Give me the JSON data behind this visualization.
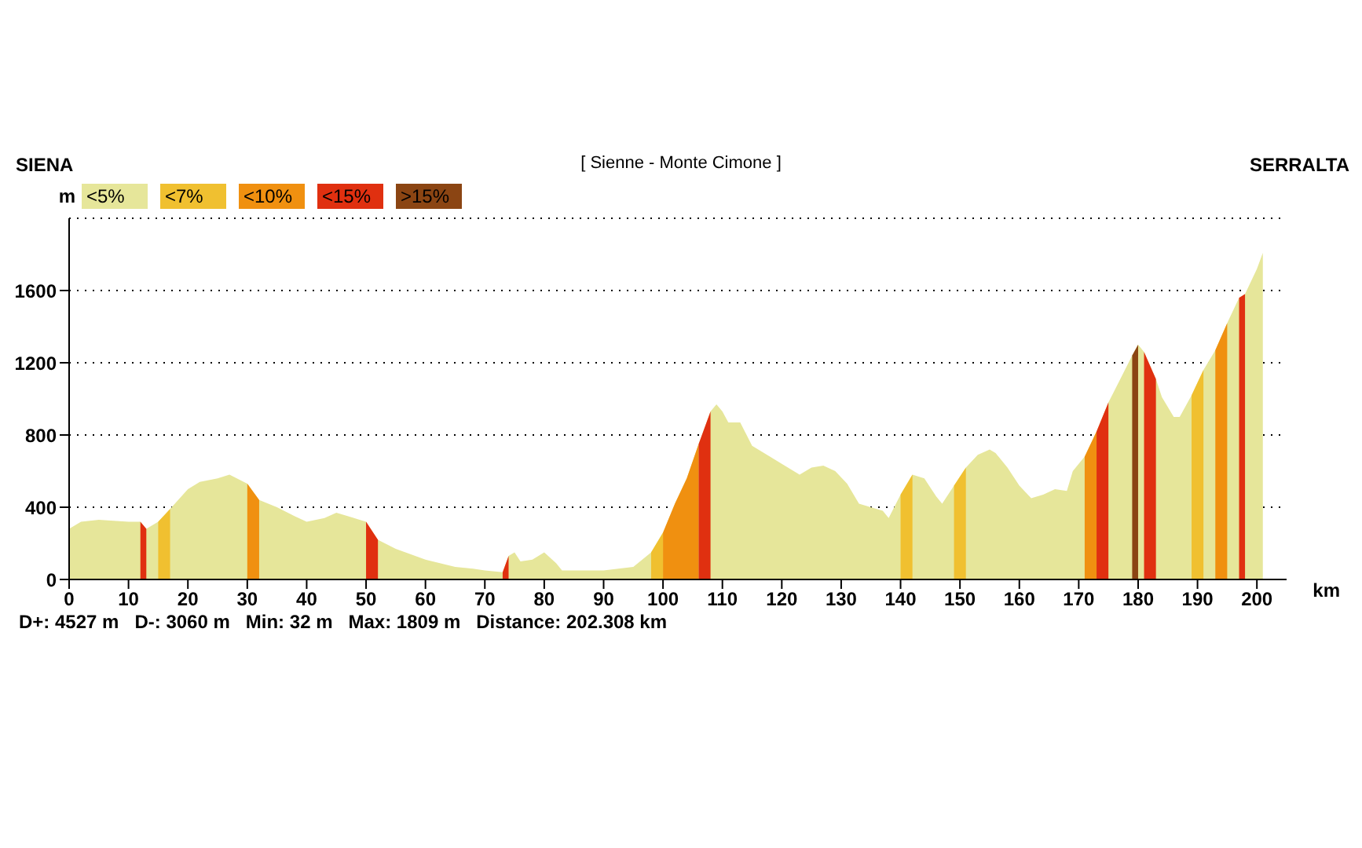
{
  "chart_data": {
    "type": "area",
    "title": "[ Sienne - Monte Cimone ]",
    "xlabel": "km",
    "ylabel": "m",
    "annotations": [
      "SIENA",
      "SERRALTA",
      "D+: 4527 m   D-: 3060 m   Min: 32 m   Max: 1809 m   Distance: 202.308 km"
    ],
    "x": [
      0,
      2,
      5,
      10,
      12,
      13,
      15,
      17,
      20,
      22,
      25,
      27,
      30,
      32,
      35,
      38,
      40,
      43,
      45,
      47,
      50,
      52,
      55,
      60,
      65,
      68,
      70,
      73,
      74,
      75,
      76,
      78,
      80,
      82,
      83,
      90,
      95,
      98,
      100,
      102,
      104,
      106,
      108,
      109,
      110,
      111,
      113,
      115,
      118,
      120,
      123,
      125,
      127,
      129,
      131,
      133,
      135,
      137,
      138,
      140,
      142,
      144,
      146,
      147,
      149,
      151,
      153,
      155,
      156,
      158,
      160,
      162,
      164,
      166,
      168,
      169,
      171,
      173,
      175,
      177,
      179,
      180,
      181,
      183,
      184,
      186,
      187,
      189,
      191,
      193,
      195,
      197,
      198,
      200,
      201
    ],
    "series": [
      {
        "name": "<5%",
        "color": "#e6e69a",
        "values": [
          280,
          320,
          330,
          320,
          320,
          280,
          320,
          390,
          500,
          540,
          560,
          580,
          530,
          440,
          400,
          350,
          320,
          340,
          370,
          350,
          320,
          220,
          170,
          110,
          70,
          60,
          50,
          40,
          130,
          150,
          100,
          110,
          150,
          90,
          50,
          50,
          70,
          150,
          260,
          420,
          560,
          750,
          930,
          970,
          930,
          870,
          870,
          740,
          680,
          640,
          580,
          620,
          630,
          600,
          530,
          420,
          400,
          380,
          340,
          470,
          580,
          560,
          460,
          420,
          520,
          620,
          690,
          720,
          700,
          620,
          520,
          450,
          470,
          500,
          490,
          600,
          680,
          820,
          980,
          1110,
          1240,
          1300,
          1260,
          1110,
          1010,
          900,
          900,
          1020,
          1160,
          1270,
          1420,
          1560,
          1580,
          1720,
          1809
        ]
      },
      {
        "name": "<7%",
        "color": "#f0c030",
        "values": [
          null,
          null,
          null,
          null,
          null,
          null,
          320,
          390,
          null,
          null,
          null,
          null,
          null,
          null,
          null,
          null,
          null,
          null,
          null,
          null,
          null,
          null,
          null,
          null,
          null,
          null,
          null,
          null,
          null,
          null,
          null,
          null,
          null,
          null,
          null,
          null,
          null,
          150,
          260,
          null,
          null,
          null,
          null,
          null,
          null,
          null,
          null,
          null,
          null,
          null,
          null,
          null,
          null,
          null,
          null,
          null,
          null,
          null,
          null,
          470,
          580,
          null,
          null,
          null,
          520,
          620,
          null,
          null,
          null,
          null,
          null,
          null,
          null,
          null,
          null,
          null,
          null,
          null,
          null,
          null,
          null,
          null,
          null,
          null,
          null,
          null,
          null,
          1020,
          1160,
          null,
          null,
          null,
          null,
          null,
          null
        ]
      },
      {
        "name": "<10%",
        "color": "#f09010",
        "values": [
          null,
          null,
          null,
          null,
          null,
          null,
          null,
          null,
          null,
          null,
          null,
          null,
          530,
          440,
          null,
          null,
          null,
          null,
          null,
          null,
          null,
          null,
          null,
          null,
          null,
          null,
          null,
          null,
          null,
          null,
          null,
          null,
          null,
          null,
          null,
          null,
          null,
          null,
          260,
          420,
          560,
          750,
          null,
          null,
          null,
          null,
          null,
          null,
          null,
          null,
          null,
          null,
          null,
          null,
          null,
          null,
          null,
          null,
          null,
          null,
          null,
          null,
          null,
          null,
          null,
          null,
          null,
          null,
          null,
          null,
          null,
          null,
          null,
          null,
          null,
          null,
          680,
          820,
          null,
          null,
          null,
          null,
          null,
          null,
          null,
          null,
          null,
          null,
          null,
          1270,
          1420,
          null,
          null,
          null,
          null
        ]
      },
      {
        "name": "<15%",
        "color": "#e03010",
        "values": [
          null,
          null,
          null,
          null,
          320,
          280,
          null,
          null,
          null,
          null,
          null,
          null,
          null,
          null,
          null,
          null,
          null,
          null,
          null,
          null,
          320,
          220,
          null,
          null,
          null,
          null,
          null,
          40,
          130,
          null,
          null,
          null,
          null,
          null,
          null,
          null,
          null,
          null,
          null,
          null,
          null,
          750,
          930,
          null,
          null,
          null,
          null,
          null,
          null,
          null,
          null,
          null,
          null,
          null,
          null,
          null,
          null,
          null,
          null,
          null,
          null,
          null,
          null,
          null,
          null,
          null,
          null,
          null,
          null,
          null,
          null,
          null,
          null,
          null,
          null,
          null,
          null,
          820,
          980,
          null,
          null,
          null,
          1260,
          1110,
          null,
          null,
          null,
          null,
          null,
          null,
          null,
          1560,
          1580,
          null,
          null
        ]
      },
      {
        "name": ">15%",
        "color": "#8b4513",
        "values": [
          null,
          null,
          null,
          null,
          null,
          null,
          null,
          null,
          null,
          null,
          null,
          null,
          null,
          null,
          null,
          null,
          null,
          null,
          null,
          null,
          null,
          null,
          null,
          null,
          null,
          null,
          null,
          null,
          null,
          null,
          null,
          null,
          null,
          null,
          null,
          null,
          null,
          null,
          null,
          null,
          null,
          null,
          null,
          null,
          null,
          null,
          null,
          null,
          null,
          null,
          null,
          null,
          null,
          null,
          null,
          null,
          null,
          null,
          null,
          null,
          null,
          null,
          null,
          null,
          null,
          null,
          null,
          null,
          null,
          null,
          null,
          null,
          null,
          null,
          null,
          null,
          null,
          null,
          null,
          null,
          1240,
          1300,
          null,
          null,
          null,
          null,
          null,
          null,
          null,
          null,
          null,
          null,
          null,
          null,
          null
        ]
      }
    ],
    "xlim": [
      0,
      205
    ],
    "xticks": [
      0,
      10,
      20,
      30,
      40,
      50,
      60,
      70,
      80,
      90,
      100,
      110,
      120,
      130,
      140,
      150,
      160,
      170,
      180,
      190,
      200
    ],
    "ylim": [
      0,
      2000
    ],
    "yticks": [
      0,
      400,
      800,
      1200,
      1600
    ],
    "grid": "y",
    "legend": "top left"
  }
}
